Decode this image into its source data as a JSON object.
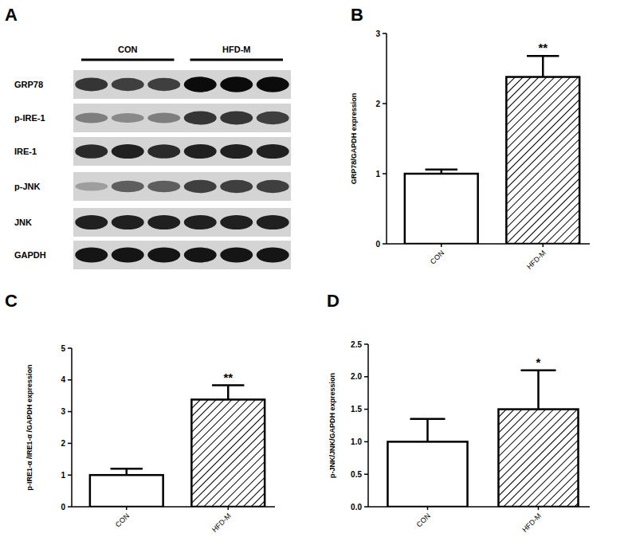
{
  "blot": {
    "panel_label": "A",
    "groups": [
      "CON",
      "HFD-M"
    ],
    "rows": [
      {
        "label": "GRP78",
        "bands": [
          0.75,
          0.7,
          0.7,
          0.95,
          0.95,
          0.95
        ]
      },
      {
        "label": "p-IRE-1",
        "bands": [
          0.4,
          0.35,
          0.4,
          0.75,
          0.75,
          0.7
        ]
      },
      {
        "label": "IRE-1",
        "bands": [
          0.8,
          0.85,
          0.8,
          0.85,
          0.85,
          0.85
        ]
      },
      {
        "label": "p-JNK",
        "bands": [
          0.25,
          0.55,
          0.55,
          0.7,
          0.7,
          0.7
        ]
      },
      {
        "label": "JNK",
        "bands": [
          0.85,
          0.85,
          0.85,
          0.85,
          0.85,
          0.85
        ]
      },
      {
        "label": "GAPDH",
        "bands": [
          0.9,
          0.9,
          0.9,
          0.9,
          0.9,
          0.9
        ]
      }
    ]
  },
  "chart_data": [
    {
      "type": "bar",
      "panel_label": "B",
      "y_label": "GRP78/GAPDH expression",
      "categories": [
        "CON",
        "HFD-M"
      ],
      "values": [
        1.0,
        2.38
      ],
      "errors": [
        0.06,
        0.3
      ],
      "colors": [
        "#ffffff",
        "#ffffff"
      ],
      "ylim": [
        0,
        3
      ],
      "yticks": [
        0,
        1,
        2,
        3
      ],
      "annotations": [
        {
          "text": "**",
          "category": "HFD-M"
        }
      ]
    },
    {
      "type": "bar",
      "panel_label": "C",
      "y_label": "p-IRE1-α /IRE1-α /GAPDH expression",
      "categories": [
        "CON",
        "HFD-M"
      ],
      "values": [
        1.0,
        3.38
      ],
      "errors": [
        0.2,
        0.45
      ],
      "colors": [
        "#ffffff",
        "#ffffff"
      ],
      "ylim": [
        0,
        5
      ],
      "yticks": [
        0,
        1,
        2,
        3,
        4,
        5
      ],
      "annotations": [
        {
          "text": "**",
          "category": "HFD-M"
        }
      ]
    },
    {
      "type": "bar",
      "panel_label": "D",
      "y_label": "p-JNK/JNK/GAPDH expression",
      "categories": [
        "CON",
        "HFD-M"
      ],
      "values": [
        1.0,
        1.5
      ],
      "errors": [
        0.35,
        0.6
      ],
      "colors": [
        "#ffffff",
        "#ffffff"
      ],
      "ylim": [
        0,
        2.5
      ],
      "yticks": [
        {
          "value": 0,
          "label": "0.0"
        },
        0.5,
        {
          "value": 1,
          "label": "1.0"
        },
        1.5,
        {
          "value": 2,
          "label": "2.0"
        },
        2.5
      ],
      "annotations": [
        {
          "text": "*",
          "category": "HFD-M"
        }
      ]
    }
  ]
}
